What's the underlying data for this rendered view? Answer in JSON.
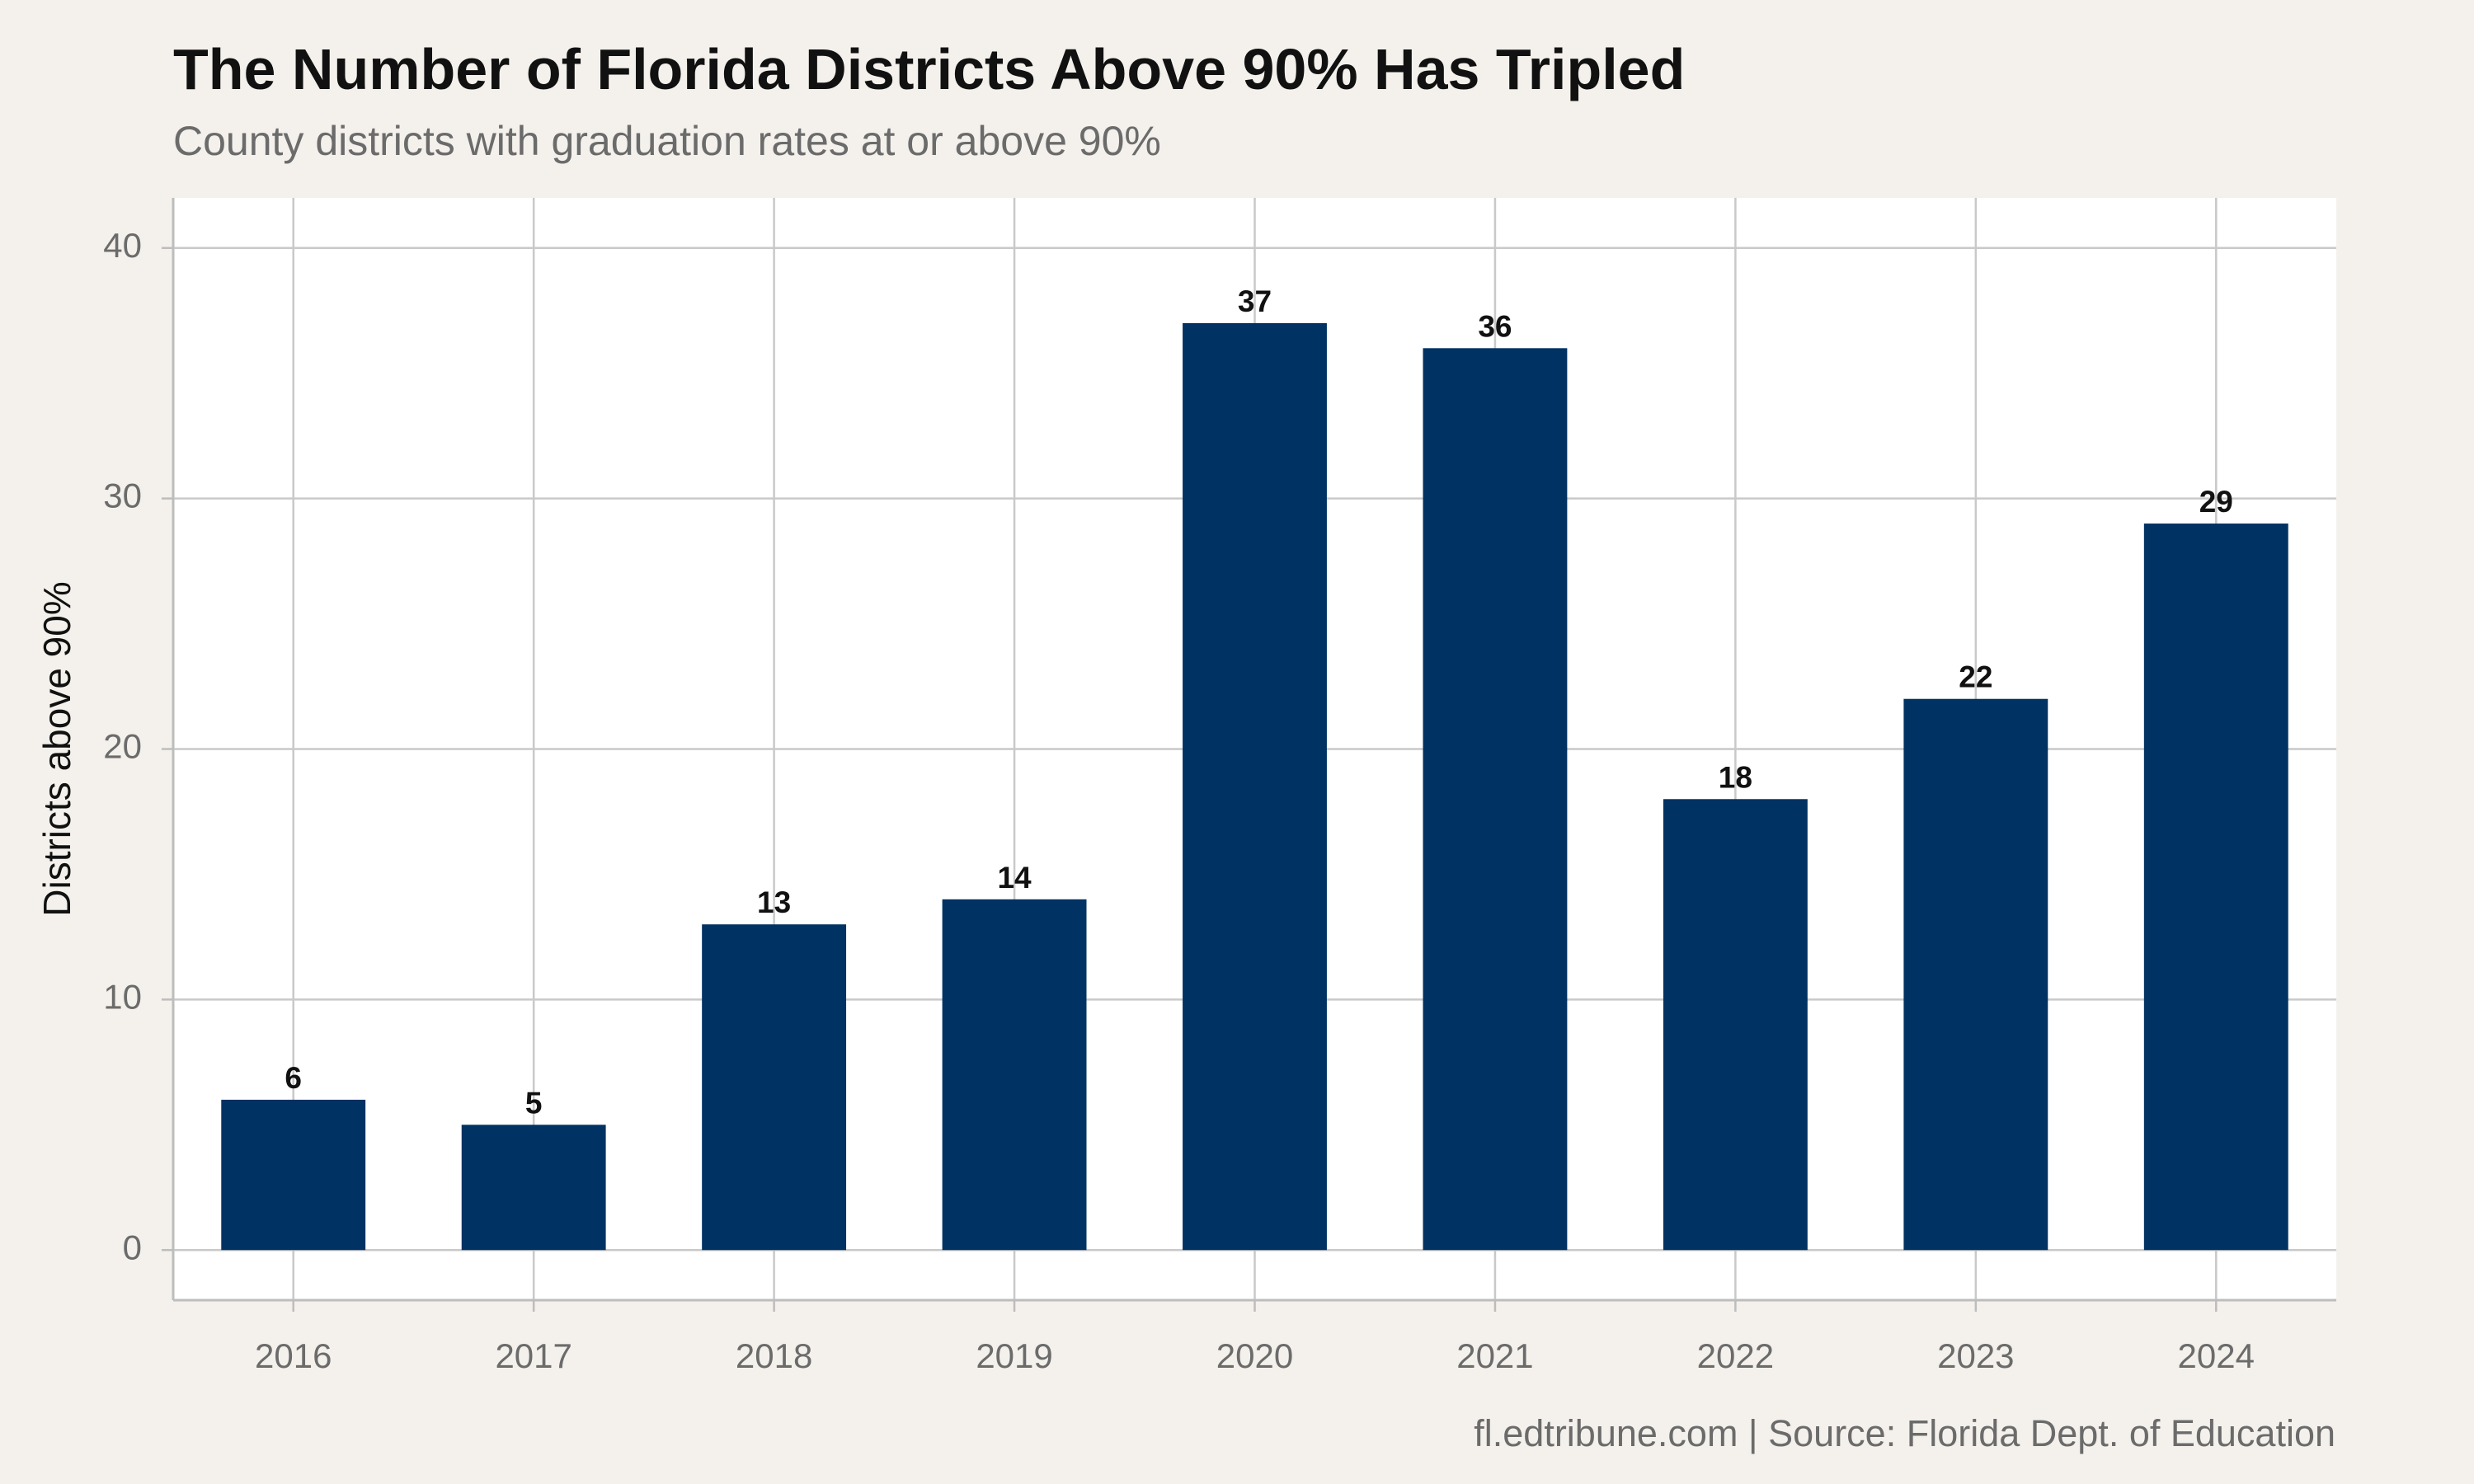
{
  "title": "The Number of Florida Districts Above 90% Has Tripled",
  "subtitle": "County districts with graduation rates at or above 90%",
  "caption": "fl.edtribune.com | Source: Florida Dept. of Education",
  "colors": {
    "bar": "#003263",
    "panel": "#ffffff",
    "background": "#f4f1ec",
    "grid": "#c9c9c9",
    "axis": "#bdbdbd"
  },
  "chart_data": {
    "type": "bar",
    "categories": [
      "2016",
      "2017",
      "2018",
      "2019",
      "2020",
      "2021",
      "2022",
      "2023",
      "2024"
    ],
    "values": [
      6,
      5,
      13,
      14,
      37,
      36,
      18,
      22,
      29
    ],
    "ylabel": "Districts above 90%",
    "xlabel": "",
    "ylim": [
      -2,
      42
    ],
    "yticks": [
      0,
      10,
      20,
      30,
      40
    ],
    "grid": true,
    "data_labels": true,
    "legend": "none"
  }
}
